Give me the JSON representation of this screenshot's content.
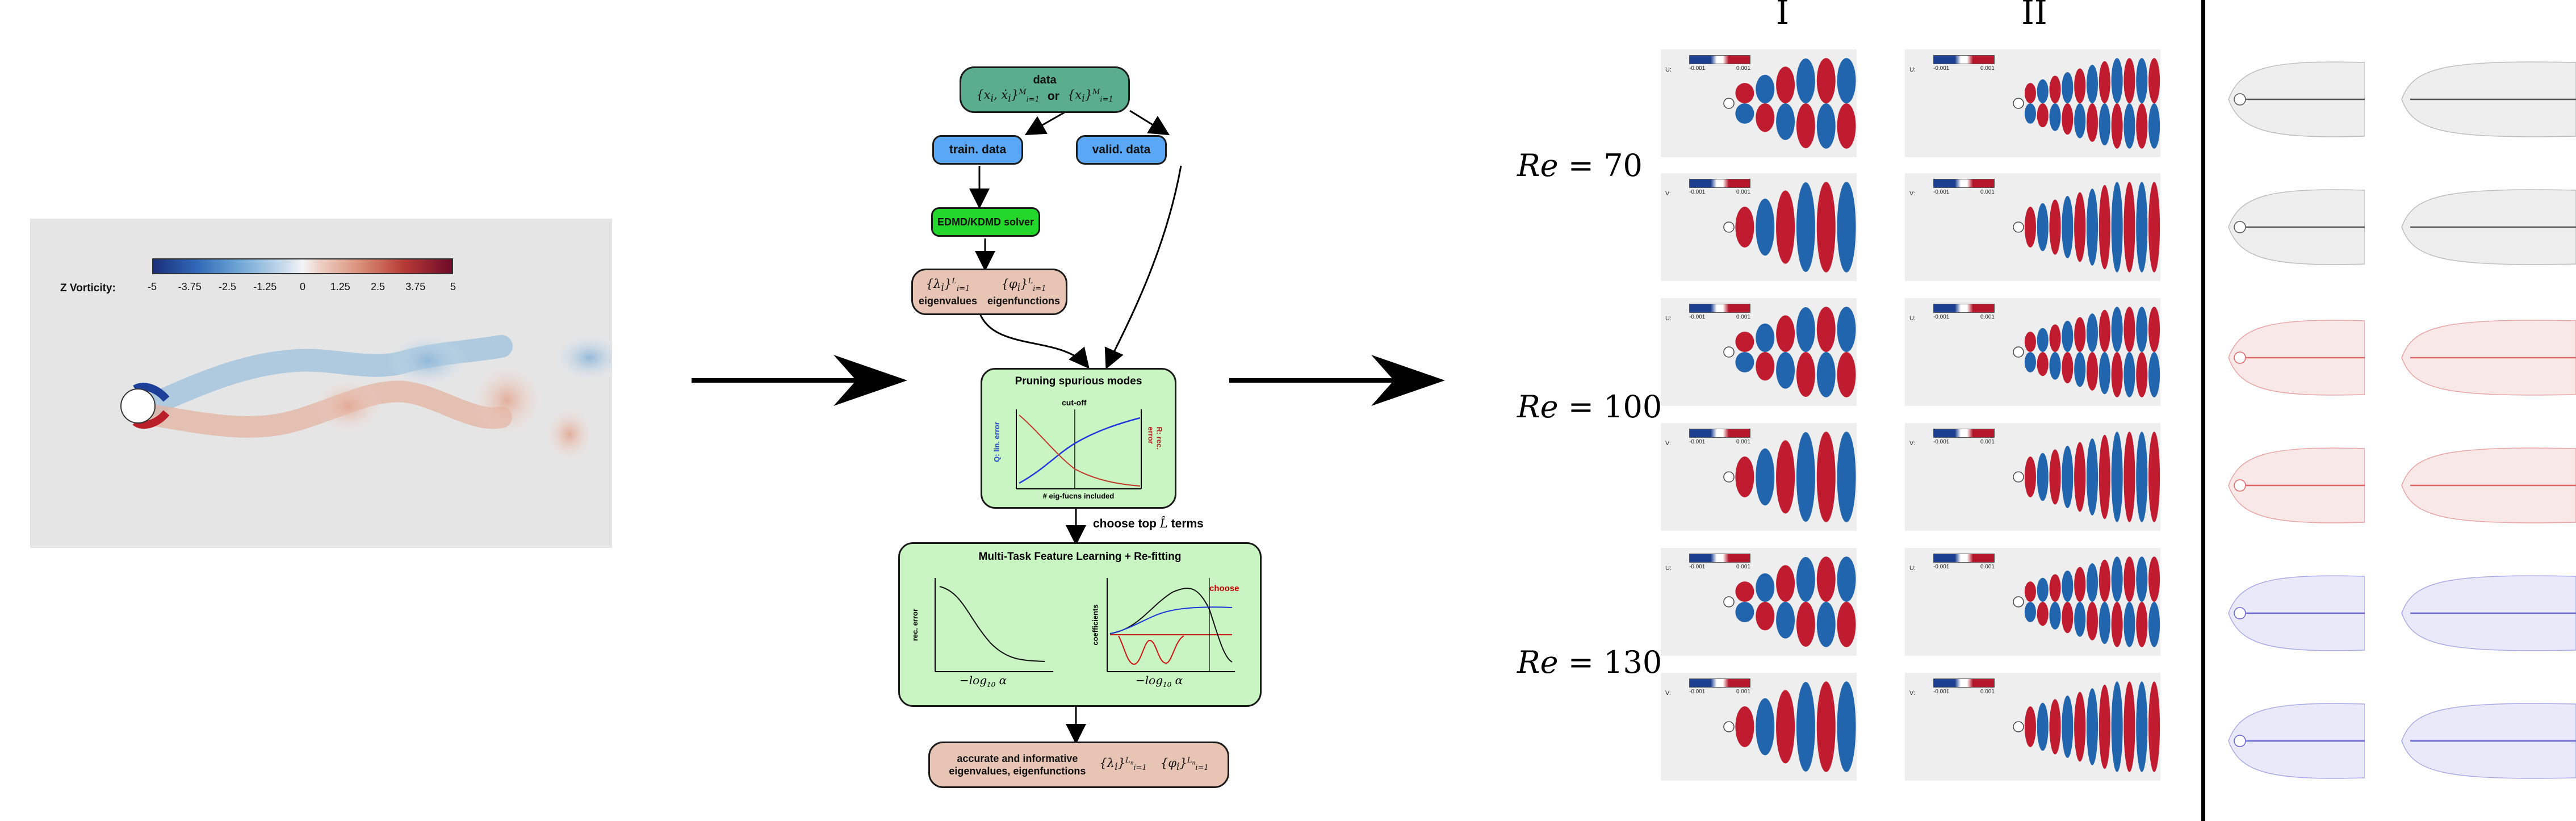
{
  "vorticity_panel": {
    "label": "Z Vorticity:",
    "ticks": [
      "-5",
      "-3.75",
      "-2.5",
      "-1.25",
      "0",
      "1.25",
      "2.5",
      "3.75",
      "5"
    ]
  },
  "flowchart": {
    "data_title": "data",
    "data_or": "or",
    "train_data": "train. data",
    "valid_data": "valid. data",
    "solver": "EDMD/KDMD solver",
    "eigenvalues": "eigenvalues",
    "eigenfunctions": "eigenfunctions",
    "pruning_title": "Pruning spurious modes",
    "cutoff": "cut-off",
    "q_axis": "Q: lin. error",
    "r_axis": "R: rec. error",
    "x_axis_pruning": "# eig-fucns included",
    "choose_top": "choose top",
    "terms": "terms",
    "mtfl_title": "Multi-Task Feature Learning + Re-fitting",
    "rec_error": "rec. error",
    "coefficients": "coefficients",
    "choose": "choose",
    "final_text_1": "accurate and informative",
    "final_text_2": "eigenvalues, eigenfunctions",
    "colors": {
      "green_box": "#c8f5c2",
      "data_box": "#5aae8e",
      "blue_box": "#5aa8f5",
      "solver_box": "#22d62a",
      "tan_box": "#e8c4b4"
    }
  },
  "mode_grid": {
    "columns": [
      "I",
      "II"
    ],
    "re_values": [
      "70",
      "100",
      "130"
    ],
    "rows": [
      {
        "comp": "U:",
        "lo": "-0.001",
        "hi": "0.001"
      },
      {
        "comp": "V:",
        "lo": "-0.001",
        "hi": "0.001"
      },
      {
        "comp": "U:",
        "lo": "-0.001",
        "hi": "0.001"
      },
      {
        "comp": "V:",
        "lo": "-0.001",
        "hi": "0.001"
      },
      {
        "comp": "U:",
        "lo": "-0.001",
        "hi": "0.001"
      },
      {
        "comp": "V:",
        "lo": "-0.001",
        "hi": "0.001"
      }
    ]
  }
}
